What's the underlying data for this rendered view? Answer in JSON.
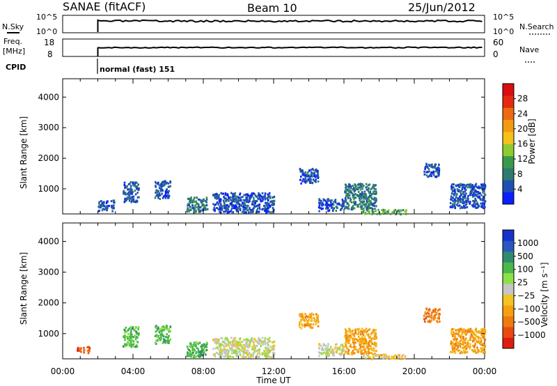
{
  "header": {
    "station": "SANAE (fitACF)",
    "beam": "Beam 10",
    "date": "25/Jun/2012"
  },
  "top_panels": {
    "nsky_label": "N.Sky",
    "nsearch_label": "N.Search",
    "noise_tick_top": "10^5",
    "noise_tick_bottom": "10^0",
    "freq_label": "Freq.",
    "freq_unit": "[MHz]",
    "freq_ticks": [
      "18",
      "8"
    ],
    "nave_label": "Nave",
    "nave_ticks": [
      "60",
      "0"
    ],
    "cpid_label": "CPID",
    "cpid_value": "normal (fast) 151"
  },
  "chart_data": [
    {
      "type": "heatmap",
      "name": "power",
      "ylabel": "Slant Range [km]",
      "yticks": [
        1000,
        2000,
        3000,
        4000
      ],
      "ylim": [
        180,
        4600
      ],
      "xlim": [
        0,
        24
      ],
      "colorbar": {
        "label": "Power [dB]",
        "ticks": [
          "4",
          "8",
          "12",
          "16",
          "20",
          "24",
          "28"
        ],
        "colors": [
          "#0a1eff",
          "#1f4fb4",
          "#2f7a6e",
          "#3b9a4a",
          "#8ccc2e",
          "#f2c21a",
          "#f59a10",
          "#ee6a10",
          "#e52a10",
          "#d90e0e"
        ]
      },
      "scatter_clusters": [
        {
          "t_start": 2.0,
          "t_end": 2.9,
          "r_min": 300,
          "r_max": 650,
          "color_level": 1
        },
        {
          "t_start": 3.4,
          "t_end": 4.3,
          "r_min": 600,
          "r_max": 1250,
          "color_level": 1
        },
        {
          "t_start": 5.2,
          "t_end": 6.1,
          "r_min": 700,
          "r_max": 1300,
          "color_level": 1
        },
        {
          "t_start": 7.0,
          "t_end": 8.2,
          "r_min": 250,
          "r_max": 750,
          "color_level": 2
        },
        {
          "t_start": 8.5,
          "t_end": 12.0,
          "r_min": 250,
          "r_max": 900,
          "color_level": 1
        },
        {
          "t_start": 13.4,
          "t_end": 14.5,
          "r_min": 1200,
          "r_max": 1700,
          "color_level": 1
        },
        {
          "t_start": 14.5,
          "t_end": 16.0,
          "r_min": 300,
          "r_max": 700,
          "color_level": 1
        },
        {
          "t_start": 16.0,
          "t_end": 17.8,
          "r_min": 350,
          "r_max": 1200,
          "color_level": 2
        },
        {
          "t_start": 17.0,
          "t_end": 19.5,
          "r_min": 200,
          "r_max": 350,
          "color_level": 3
        },
        {
          "t_start": 20.5,
          "t_end": 21.4,
          "r_min": 1400,
          "r_max": 1850,
          "color_level": 1
        },
        {
          "t_start": 22.0,
          "t_end": 24.0,
          "r_min": 400,
          "r_max": 1200,
          "color_level": 1
        }
      ]
    },
    {
      "type": "heatmap",
      "name": "velocity",
      "ylabel": "Slant Range [km]",
      "yticks": [
        1000,
        2000,
        3000,
        4000
      ],
      "ylim": [
        180,
        4600
      ],
      "xlim": [
        0,
        24
      ],
      "xlabel": "Time UT",
      "xticks": [
        "00:00",
        "04:00",
        "08:00",
        "12:00",
        "16:00",
        "20:00",
        "00:00"
      ],
      "colorbar": {
        "label": "Velocity [m s⁻¹]",
        "ticks": [
          "1000",
          "500",
          "100",
          "25",
          "−25",
          "−100",
          "−500",
          "−1000"
        ],
        "colors": [
          "#1533c7",
          "#2b58c0",
          "#2f8a6e",
          "#4ab848",
          "#8ce048",
          "#c6c6c6",
          "#f3c31f",
          "#f5a010",
          "#ef7a10",
          "#e84a10",
          "#e01a0e"
        ]
      },
      "scatter_clusters": [
        {
          "t_start": 0.8,
          "t_end": 1.5,
          "r_min": 400,
          "r_max": 600,
          "color_level": 9
        },
        {
          "t_start": 3.4,
          "t_end": 4.3,
          "r_min": 600,
          "r_max": 1250,
          "color_level": 3
        },
        {
          "t_start": 5.2,
          "t_end": 6.1,
          "r_min": 700,
          "r_max": 1300,
          "color_level": 3
        },
        {
          "t_start": 7.0,
          "t_end": 8.2,
          "r_min": 250,
          "r_max": 750,
          "color_level": 3
        },
        {
          "t_start": 8.5,
          "t_end": 12.0,
          "r_min": 250,
          "r_max": 900,
          "color_level": 5
        },
        {
          "t_start": 13.4,
          "t_end": 14.5,
          "r_min": 1200,
          "r_max": 1700,
          "color_level": 7
        },
        {
          "t_start": 14.5,
          "t_end": 16.0,
          "r_min": 300,
          "r_max": 700,
          "color_level": 5
        },
        {
          "t_start": 16.0,
          "t_end": 17.8,
          "r_min": 350,
          "r_max": 1200,
          "color_level": 7
        },
        {
          "t_start": 17.0,
          "t_end": 19.5,
          "r_min": 200,
          "r_max": 350,
          "color_level": 6
        },
        {
          "t_start": 20.5,
          "t_end": 21.4,
          "r_min": 1400,
          "r_max": 1850,
          "color_level": 8
        },
        {
          "t_start": 22.0,
          "t_end": 24.0,
          "r_min": 400,
          "r_max": 1200,
          "color_level": 7
        }
      ]
    }
  ]
}
